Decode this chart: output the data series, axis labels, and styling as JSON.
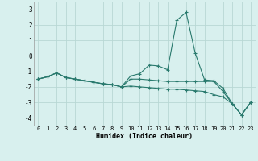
{
  "xlabel": "Humidex (Indice chaleur)",
  "background_color": "#d8f0ee",
  "grid_color": "#b8d8d4",
  "line_color": "#2a7a6e",
  "x": [
    0,
    1,
    2,
    3,
    4,
    5,
    6,
    7,
    8,
    9,
    10,
    11,
    12,
    13,
    14,
    15,
    16,
    17,
    18,
    19,
    20,
    21,
    22,
    23
  ],
  "line1": [
    -1.5,
    -1.35,
    -1.1,
    -1.4,
    -1.5,
    -1.6,
    -1.7,
    -1.8,
    -1.85,
    -2.0,
    -1.3,
    -1.15,
    -0.6,
    -0.65,
    -0.9,
    2.3,
    2.8,
    0.15,
    -1.55,
    -1.6,
    -2.1,
    -3.1,
    -3.8,
    -3.0
  ],
  "line2": [
    -1.5,
    -1.35,
    -1.1,
    -1.4,
    -1.5,
    -1.6,
    -1.7,
    -1.8,
    -1.85,
    -2.0,
    -1.5,
    -1.5,
    -1.55,
    -1.6,
    -1.65,
    -1.65,
    -1.65,
    -1.65,
    -1.65,
    -1.65,
    -2.3,
    -3.1,
    -3.8,
    -3.0
  ],
  "line3": [
    -1.5,
    -1.35,
    -1.1,
    -1.4,
    -1.5,
    -1.6,
    -1.7,
    -1.8,
    -1.85,
    -2.0,
    -1.95,
    -2.0,
    -2.05,
    -2.1,
    -2.15,
    -2.15,
    -2.2,
    -2.25,
    -2.3,
    -2.5,
    -2.65,
    -3.1,
    -3.8,
    -3.0
  ],
  "ylim": [
    -4.5,
    3.5
  ],
  "xlim": [
    -0.5,
    23.5
  ],
  "yticks": [
    -4,
    -3,
    -2,
    -1,
    0,
    1,
    2,
    3
  ],
  "xticks": [
    0,
    1,
    2,
    3,
    4,
    5,
    6,
    7,
    8,
    9,
    10,
    11,
    12,
    13,
    14,
    15,
    16,
    17,
    18,
    19,
    20,
    21,
    22,
    23
  ]
}
